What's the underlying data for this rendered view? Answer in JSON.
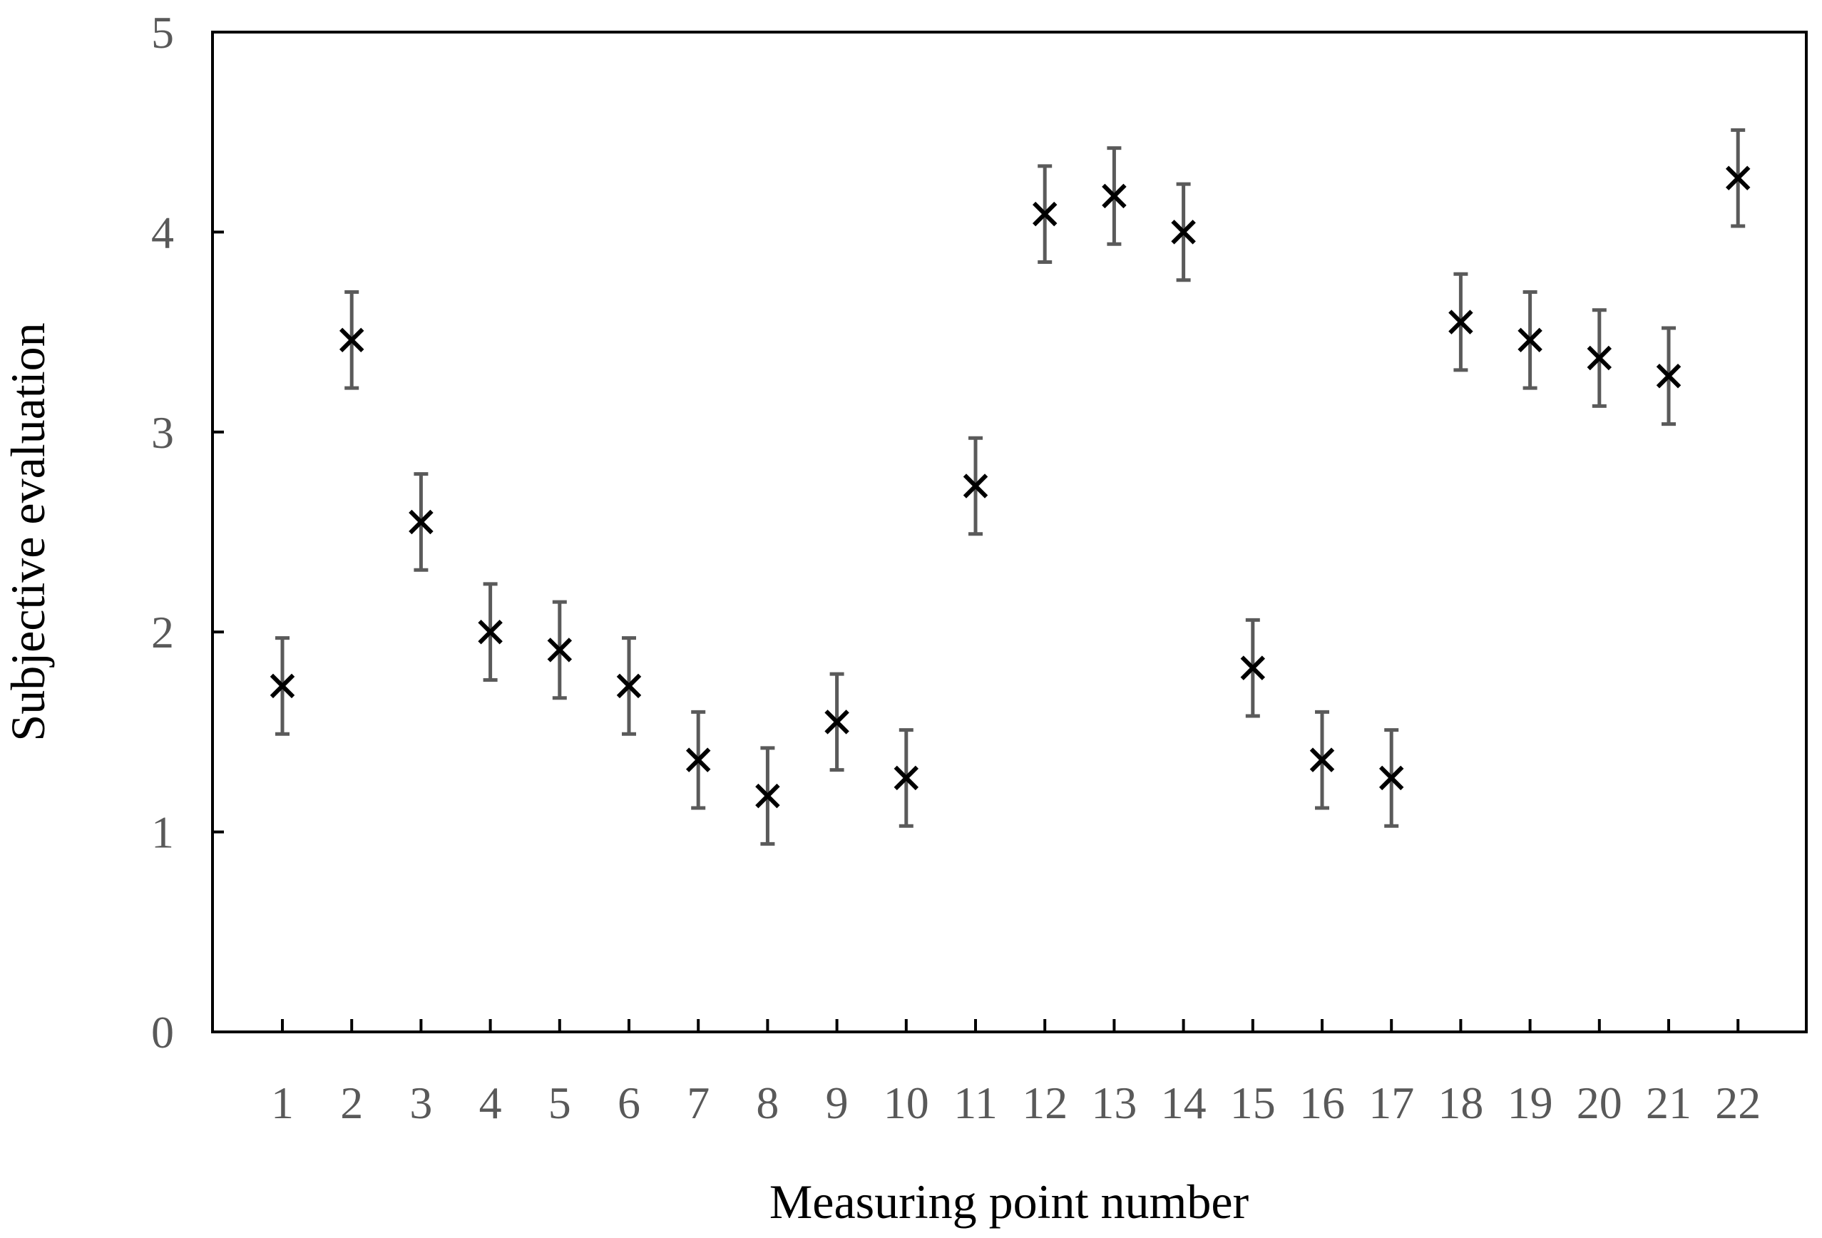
{
  "chart_data": {
    "type": "scatter",
    "xlabel": "Measuring point number",
    "ylabel": "Subjective evaluation",
    "ylim": [
      0,
      5
    ],
    "yticks": [
      "0",
      "1",
      "2",
      "3",
      "4",
      "5"
    ],
    "categories": [
      "1",
      "2",
      "3",
      "4",
      "5",
      "6",
      "7",
      "8",
      "9",
      "10",
      "11",
      "12",
      "13",
      "14",
      "15",
      "16",
      "17",
      "18",
      "19",
      "20",
      "21",
      "22"
    ],
    "values": [
      1.73,
      3.46,
      2.55,
      2.0,
      1.91,
      1.73,
      1.36,
      1.18,
      1.55,
      1.27,
      2.73,
      4.09,
      4.18,
      4.0,
      1.82,
      1.36,
      1.27,
      3.55,
      3.46,
      3.37,
      3.28,
      4.27
    ],
    "error": [
      0.24,
      0.24,
      0.24,
      0.24,
      0.24,
      0.24,
      0.24,
      0.24,
      0.24,
      0.24,
      0.24,
      0.24,
      0.24,
      0.24,
      0.24,
      0.24,
      0.24,
      0.24,
      0.24,
      0.24,
      0.24,
      0.24
    ],
    "marker": "x",
    "grid": false,
    "legend": "none"
  }
}
